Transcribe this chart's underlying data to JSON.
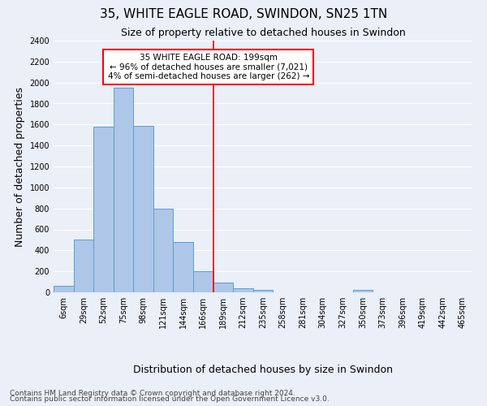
{
  "title": "35, WHITE EAGLE ROAD, SWINDON, SN25 1TN",
  "subtitle": "Size of property relative to detached houses in Swindon",
  "xlabel": "Distribution of detached houses by size in Swindon",
  "ylabel": "Number of detached properties",
  "categories": [
    "6sqm",
    "29sqm",
    "52sqm",
    "75sqm",
    "98sqm",
    "121sqm",
    "144sqm",
    "166sqm",
    "189sqm",
    "212sqm",
    "235sqm",
    "258sqm",
    "281sqm",
    "304sqm",
    "327sqm",
    "350sqm",
    "373sqm",
    "396sqm",
    "419sqm",
    "442sqm",
    "465sqm"
  ],
  "bar_values": [
    60,
    500,
    1580,
    1950,
    1590,
    800,
    480,
    200,
    95,
    35,
    25,
    0,
    0,
    0,
    0,
    20,
    0,
    0,
    0,
    0,
    0
  ],
  "bar_color": "#aec6e8",
  "bar_edge_color": "#5a9fd4",
  "ylim": [
    0,
    2400
  ],
  "yticks": [
    0,
    200,
    400,
    600,
    800,
    1000,
    1200,
    1400,
    1600,
    1800,
    2000,
    2200,
    2400
  ],
  "vline_x": 7.5,
  "vline_color": "red",
  "annotation_text": "35 WHITE EAGLE ROAD: 199sqm\n← 96% of detached houses are smaller (7,021)\n4% of semi-detached houses are larger (262) →",
  "annotation_box_color": "white",
  "annotation_box_edge_color": "red",
  "footer1": "Contains HM Land Registry data © Crown copyright and database right 2024.",
  "footer2": "Contains public sector information licensed under the Open Government Licence v3.0.",
  "background_color": "#eaeff8",
  "grid_color": "white",
  "title_fontsize": 11,
  "subtitle_fontsize": 9,
  "axis_label_fontsize": 9,
  "tick_fontsize": 7,
  "annotation_fontsize": 7.5,
  "footer_fontsize": 6.5
}
